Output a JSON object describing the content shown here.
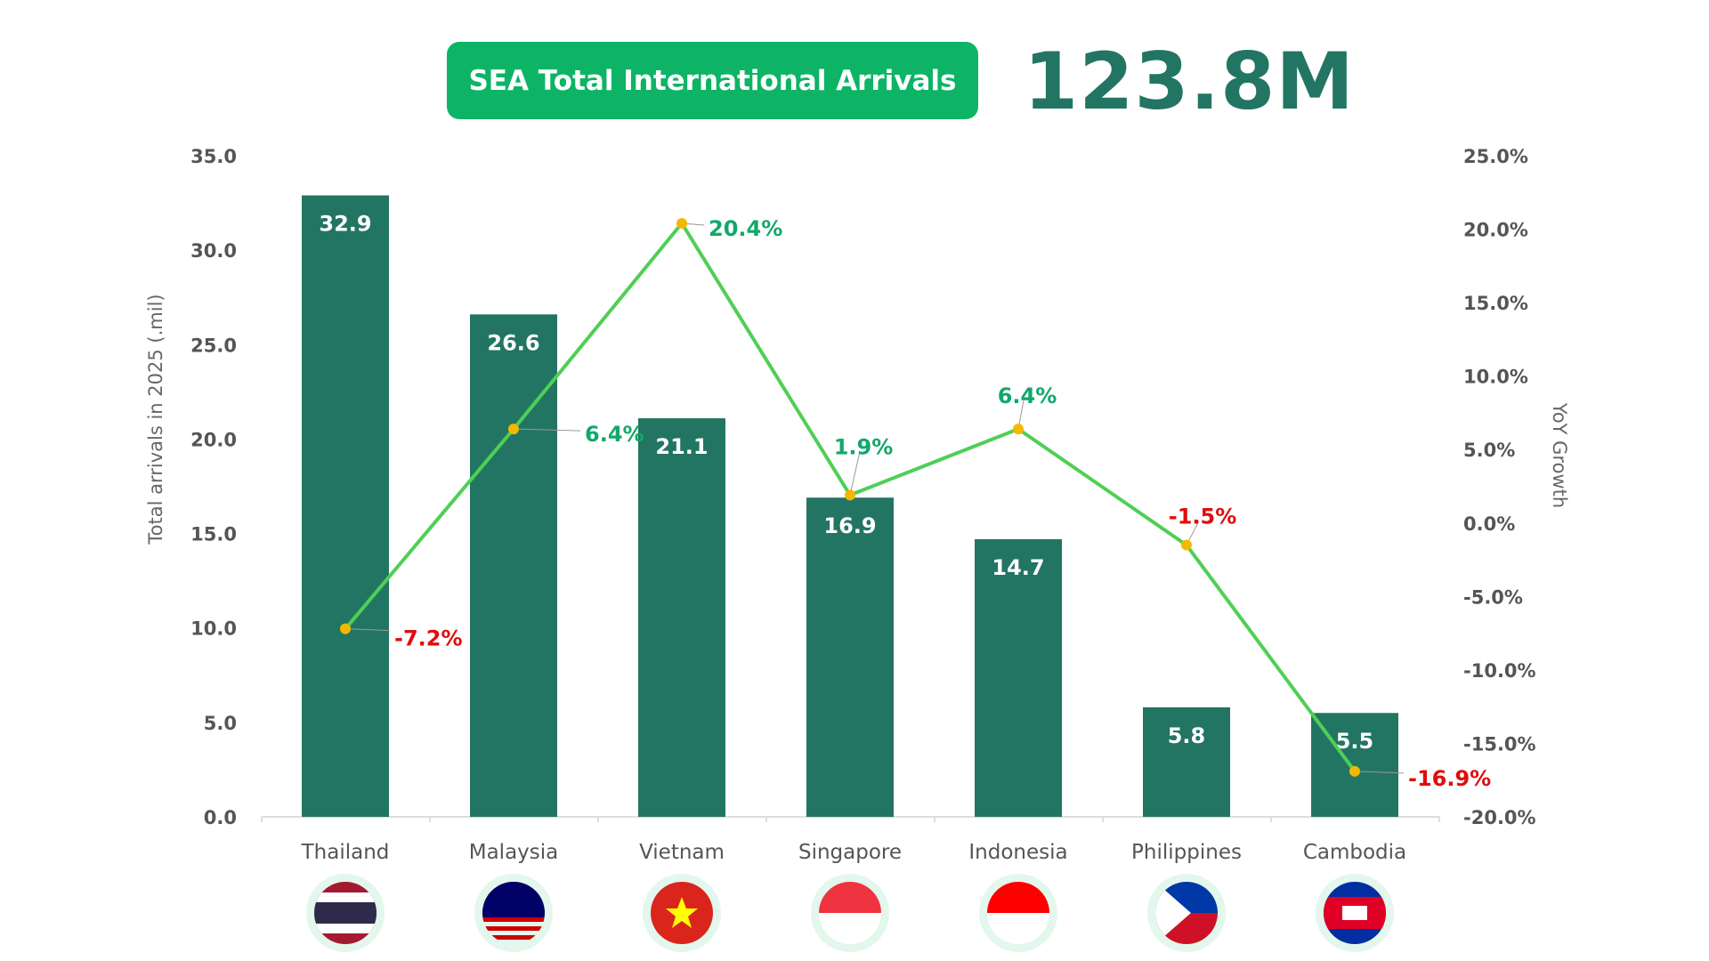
{
  "header": {
    "title": "SEA Total International Arrivals",
    "total": "123.8M"
  },
  "chart_data": {
    "type": "bar+line",
    "categories": [
      "Thailand",
      "Malaysia",
      "Vietnam",
      "Singapore",
      "Indonesia",
      "Philippines",
      "Cambodia"
    ],
    "series": [
      {
        "type": "bar",
        "axis": "left",
        "values": [
          32.9,
          26.6,
          21.1,
          16.9,
          14.7,
          5.8,
          5.5
        ],
        "labels": [
          "32.9",
          "26.6",
          "21.1",
          "16.9",
          "14.7",
          "5.8",
          "5.5"
        ]
      },
      {
        "type": "line",
        "axis": "right",
        "values": [
          -7.2,
          6.4,
          20.4,
          1.9,
          6.4,
          -1.5,
          -16.9
        ],
        "labels": [
          "-7.2%",
          "6.4%",
          "20.4%",
          "1.9%",
          "6.4%",
          "-1.5%",
          "-16.9%"
        ]
      }
    ],
    "ylabel": "Total arrivals in 2025 (.mil)",
    "y2label": "YoY Growth",
    "ylim": [
      0,
      35
    ],
    "y2lim": [
      -20,
      25
    ],
    "yticks": [
      "0.0",
      "5.0",
      "10.0",
      "15.0",
      "20.0",
      "25.0",
      "30.0",
      "35.0"
    ],
    "y2ticks": [
      "-20.0%",
      "-15.0%",
      "-10.0%",
      "-5.0%",
      "0.0%",
      "5.0%",
      "10.0%",
      "15.0%",
      "20.0%",
      "25.0%"
    ],
    "grid": false,
    "colors": {
      "bar": "#237563",
      "line": "#4fcf55",
      "point": "#f5b800",
      "positive": "#12a86a",
      "negative": "#e00d0d"
    },
    "flag_icons": [
      "thailand-flag-icon",
      "malaysia-flag-icon",
      "vietnam-flag-icon",
      "singapore-flag-icon",
      "indonesia-flag-icon",
      "philippines-flag-icon",
      "cambodia-flag-icon"
    ]
  }
}
